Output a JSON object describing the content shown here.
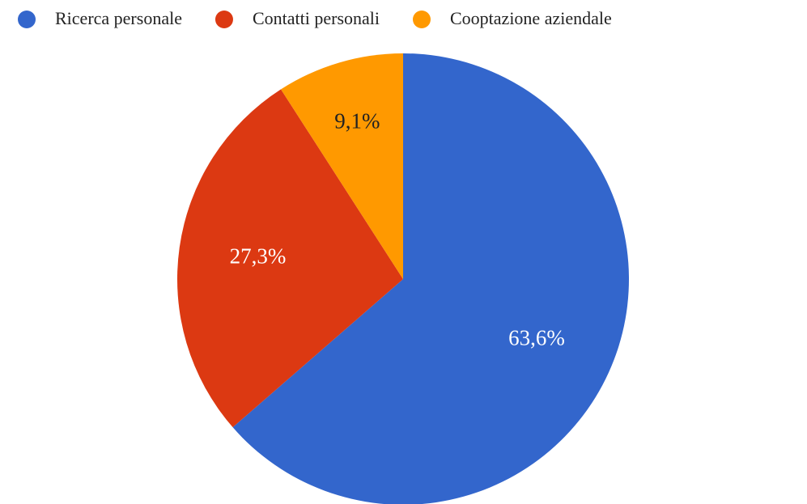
{
  "chart_data": {
    "type": "pie",
    "categories": [
      "Ricerca personale",
      "Contatti personali",
      "Cooptazione aziendale"
    ],
    "values": [
      63.6,
      27.3,
      9.1
    ],
    "value_labels": [
      "63,6%",
      "27,3%",
      "9,1%"
    ],
    "colors": [
      "#3366cc",
      "#dc3912",
      "#ff9900"
    ],
    "legend": "top"
  }
}
